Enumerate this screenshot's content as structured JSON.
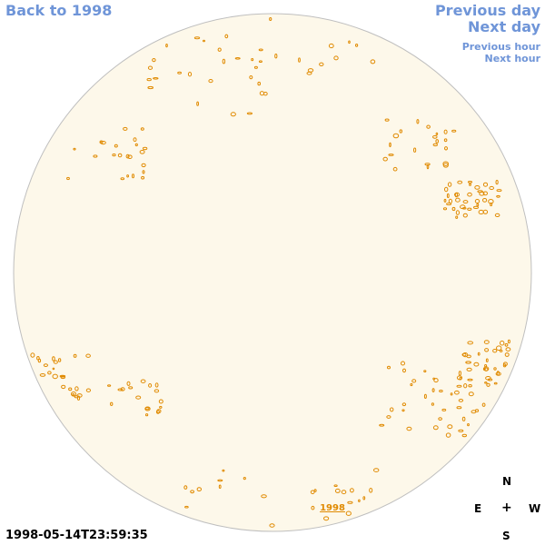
{
  "nav": {
    "back": "Back to 1998",
    "previous_day": "Previous day",
    "next_day": "Next day",
    "previous_hour": "Previous hour",
    "next_hour": "Next hour"
  },
  "disk": {
    "label": "1998",
    "fill_color": "#fdf8ea",
    "border_color": "#bfbfbf",
    "feature_color": "#e08a00"
  },
  "timestamp": "1998-05-14T23:59:35",
  "compass": {
    "north": "N",
    "east": "E",
    "center": "+",
    "west": "W",
    "south": "S"
  }
}
